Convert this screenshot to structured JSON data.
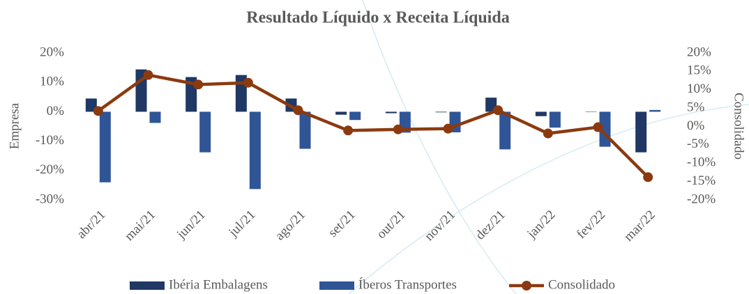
{
  "chart_data": {
    "type": "bar",
    "title": "Resultado Líquido x Receita Líquida",
    "ylabel": "Empresa",
    "y2label": "Consolidado",
    "categories": [
      "abr/21",
      "mai/21",
      "jun/21",
      "jul/21",
      "ago/21",
      "set/21",
      "out/21",
      "nov/21",
      "dez/21",
      "jan/22",
      "fev/22",
      "mar/22"
    ],
    "series": [
      {
        "name": "Ibéria Embalagens",
        "type": "bar",
        "color": "#1f3864",
        "values": [
          4.5,
          14.4,
          11.8,
          12.5,
          4.5,
          -1,
          -0.5,
          -0.2,
          4.8,
          -1.5,
          0,
          -13.8
        ]
      },
      {
        "name": "Íberos Transportes",
        "type": "bar",
        "color": "#2f5597",
        "values": [
          -24,
          -3.8,
          -13.8,
          -26.3,
          -12.6,
          -2.8,
          -7.1,
          -7,
          -12.8,
          -5.4,
          -11.9,
          0.6
        ]
      },
      {
        "name": "Consolidado",
        "type": "line",
        "axis": "y2",
        "color": "#8b3a0f",
        "values": [
          4.2,
          14,
          11.4,
          11.9,
          4.4,
          -1.1,
          -0.8,
          -0.6,
          4.4,
          -1.9,
          -0.2,
          -13.8
        ]
      }
    ],
    "ylim": [
      -30,
      20
    ],
    "yticks": [
      {
        "value": -30,
        "label": "-30%"
      },
      {
        "value": -20,
        "label": "-20%"
      },
      {
        "value": -10,
        "label": "-10%"
      },
      {
        "value": 0,
        "label": "0%"
      },
      {
        "value": 10,
        "label": "10%"
      },
      {
        "value": 20,
        "label": "20%"
      }
    ],
    "y2lim": [
      -20,
      20
    ],
    "y2ticks": [
      {
        "value": -20,
        "label": "-20%"
      },
      {
        "value": -15,
        "label": "-15%"
      },
      {
        "value": -10,
        "label": "-10%"
      },
      {
        "value": -5,
        "label": "-5%"
      },
      {
        "value": 0,
        "label": "0%"
      },
      {
        "value": 5,
        "label": "5%"
      },
      {
        "value": 10,
        "label": "10%"
      },
      {
        "value": 15,
        "label": "15%"
      },
      {
        "value": 20,
        "label": "20%"
      }
    ],
    "grid": false,
    "legend": "bottom"
  }
}
